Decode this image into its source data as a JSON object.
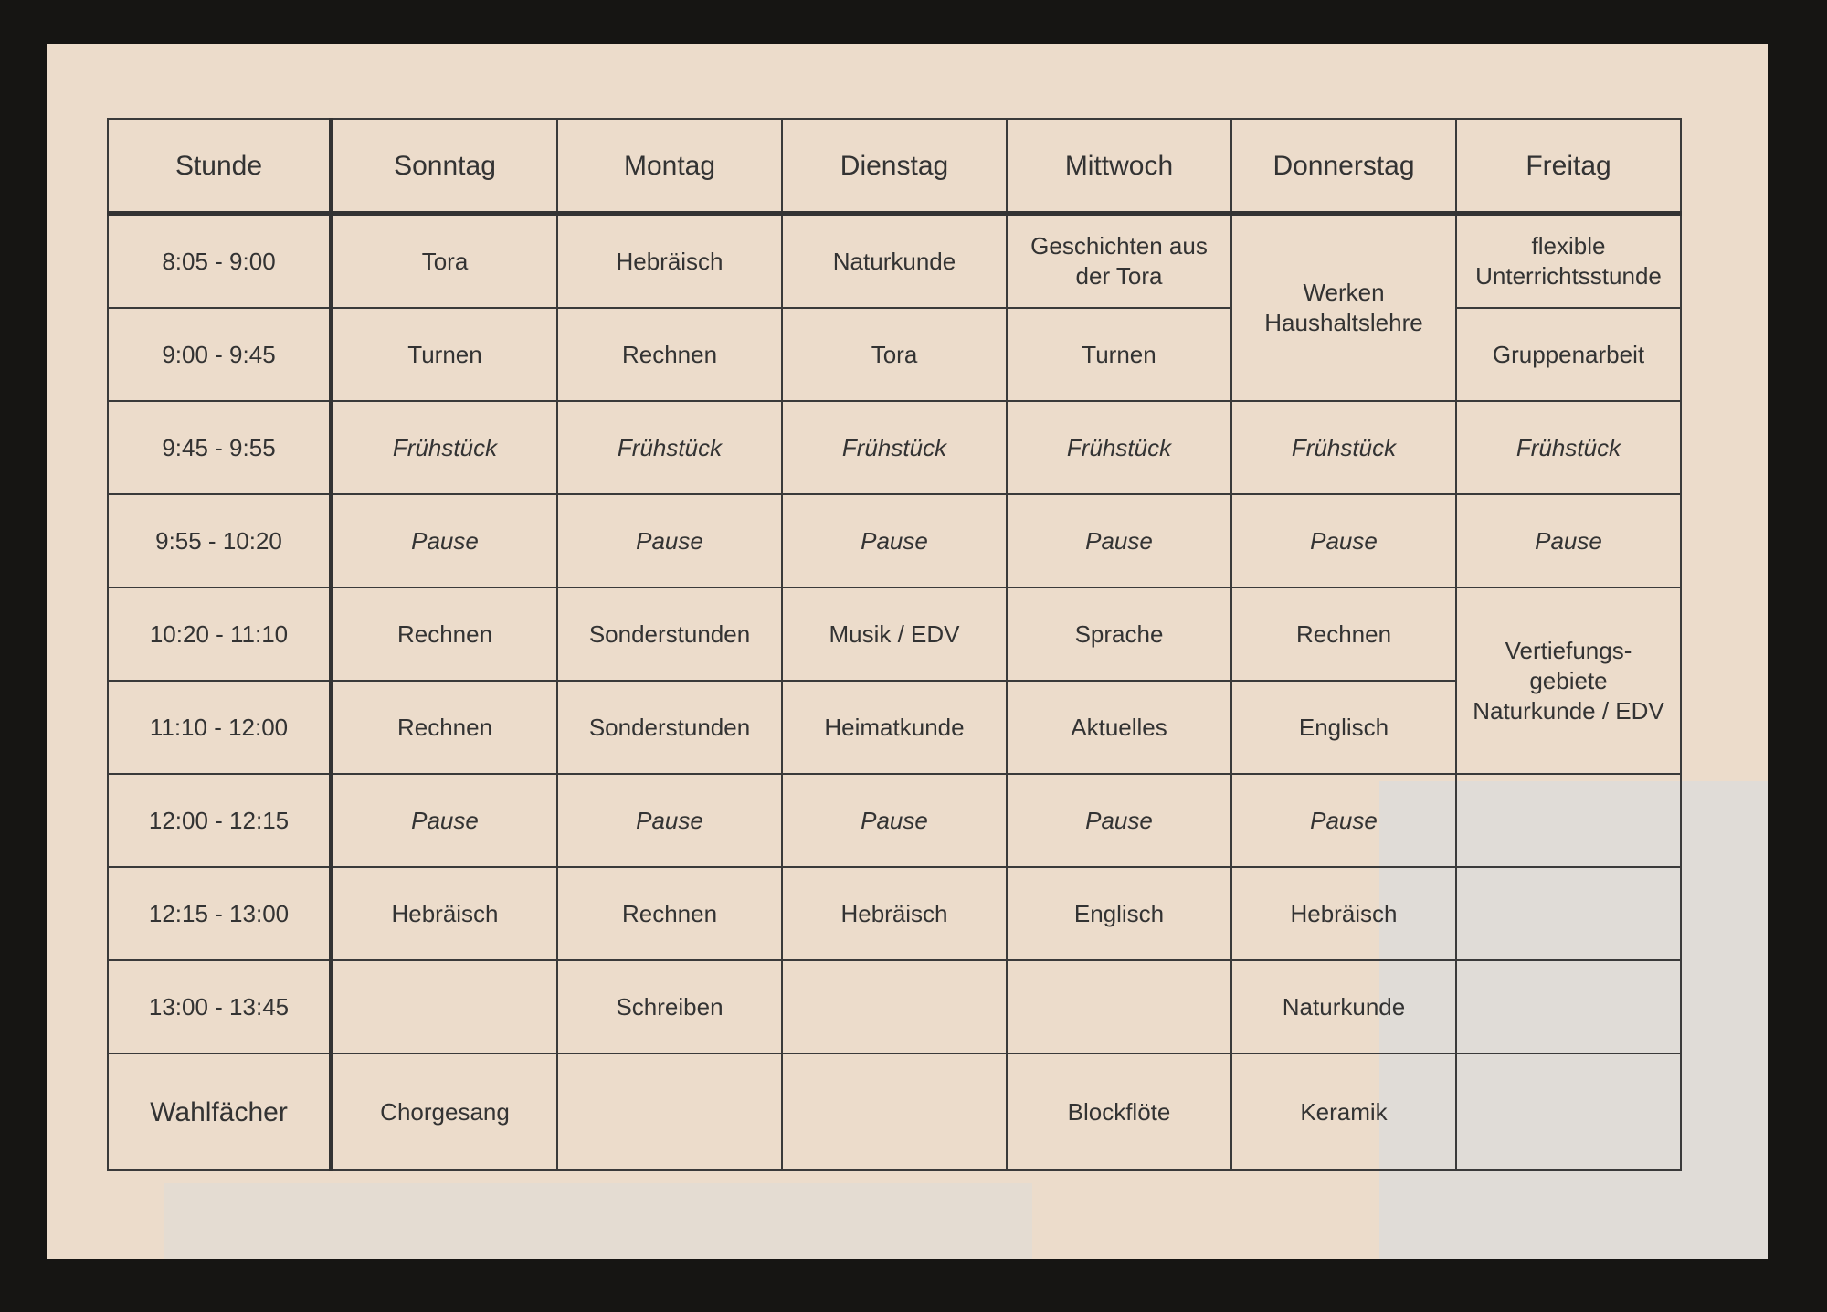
{
  "header": {
    "columns": [
      "Stunde",
      "Sonntag",
      "Montag",
      "Dienstag",
      "Mittwoch",
      "Donnerstag",
      "Freitag"
    ]
  },
  "table": {
    "rows": [
      [
        "8:05 - 9:00",
        "Tora",
        "Hebräisch",
        "Naturkunde",
        "Geschichten aus\nder Tora",
        "Werken\nHaushaltslehre",
        "flexible\nUnterrichtsstunde"
      ],
      [
        "9:00 - 9:45",
        "Turnen",
        "Rechnen",
        "Tora",
        "Turnen",
        null,
        "Gruppenarbeit"
      ],
      [
        "9:45 - 9:55",
        "Frühstück",
        "Frühstück",
        "Frühstück",
        "Frühstück",
        "Frühstück",
        "Frühstück"
      ],
      [
        "9:55 - 10:20",
        "Pause",
        "Pause",
        "Pause",
        "Pause",
        "Pause",
        "Pause"
      ],
      [
        "10:20 - 11:10",
        "Rechnen",
        "Sonderstunden",
        "Musik / EDV",
        "Sprache",
        "Rechnen",
        "Vertiefungs-\ngebiete\nNaturkunde / EDV"
      ],
      [
        "11:10 - 12:00",
        "Rechnen",
        "Sonderstunden",
        "Heimatkunde",
        "Aktuelles",
        "Englisch",
        null
      ],
      [
        "12:00 - 12:15",
        "Pause",
        "Pause",
        "Pause",
        "Pause",
        "Pause",
        null
      ],
      [
        "12:15 - 13:00",
        "Hebräisch",
        "Rechnen",
        "Hebräisch",
        "Englisch",
        "Hebräisch",
        null
      ],
      [
        "13:00 - 13:45",
        null,
        "Schreiben",
        null,
        null,
        "Naturkunde",
        null
      ],
      [
        "Wahlfächer",
        "Chorgesang",
        null,
        null,
        "Blockflöte",
        "Keramik",
        null
      ]
    ]
  }
}
